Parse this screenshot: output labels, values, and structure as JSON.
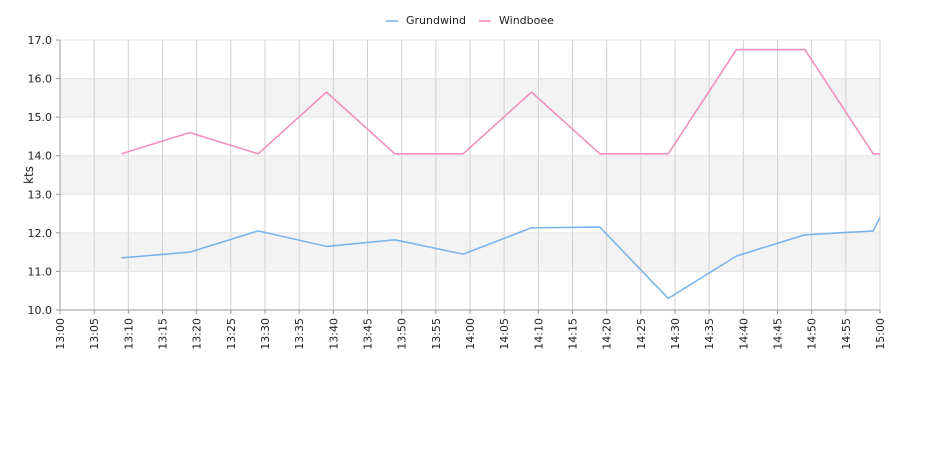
{
  "chart_data": {
    "type": "line",
    "title": "",
    "xlabel": "",
    "ylabel": "kts",
    "x": [
      "13:00",
      "13:05",
      "13:10",
      "13:15",
      "13:20",
      "13:25",
      "13:30",
      "13:35",
      "13:40",
      "13:45",
      "13:50",
      "13:55",
      "14:00",
      "14:05",
      "14:10",
      "14:15",
      "14:20",
      "14:25",
      "14:30",
      "14:35",
      "14:40",
      "14:45",
      "14:50",
      "14:55",
      "15:00"
    ],
    "ylim": [
      10.0,
      17.0
    ],
    "yticks": [
      "10.0",
      "11.0",
      "12.0",
      "13.0",
      "14.0",
      "15.0",
      "16.0",
      "17.0"
    ],
    "grid": true,
    "legend_position": "top-center",
    "series": [
      {
        "name": "Grundwind",
        "color": "#7cb5ec",
        "points": [
          [
            "13:09",
            11.35
          ],
          [
            "13:19",
            11.5
          ],
          [
            "13:29",
            12.05
          ],
          [
            "13:39",
            11.65
          ],
          [
            "13:49",
            11.82
          ],
          [
            "13:59",
            11.45
          ],
          [
            "14:09",
            12.13
          ],
          [
            "14:19",
            12.15
          ],
          [
            "14:29",
            10.3
          ],
          [
            "14:39",
            11.4
          ],
          [
            "14:49",
            11.95
          ],
          [
            "14:59",
            12.05
          ],
          [
            "15:00",
            12.4
          ]
        ]
      },
      {
        "name": "Windboee",
        "color": "#f28fbf",
        "points": [
          [
            "13:09",
            14.05
          ],
          [
            "13:19",
            14.6
          ],
          [
            "13:29",
            14.05
          ],
          [
            "13:39",
            15.65
          ],
          [
            "13:49",
            14.05
          ],
          [
            "13:59",
            14.05
          ],
          [
            "14:09",
            15.65
          ],
          [
            "14:19",
            14.05
          ],
          [
            "14:29",
            14.05
          ],
          [
            "14:39",
            16.75
          ],
          [
            "14:49",
            16.75
          ],
          [
            "14:59",
            14.05
          ],
          [
            "15:00",
            14.05
          ]
        ]
      }
    ]
  }
}
